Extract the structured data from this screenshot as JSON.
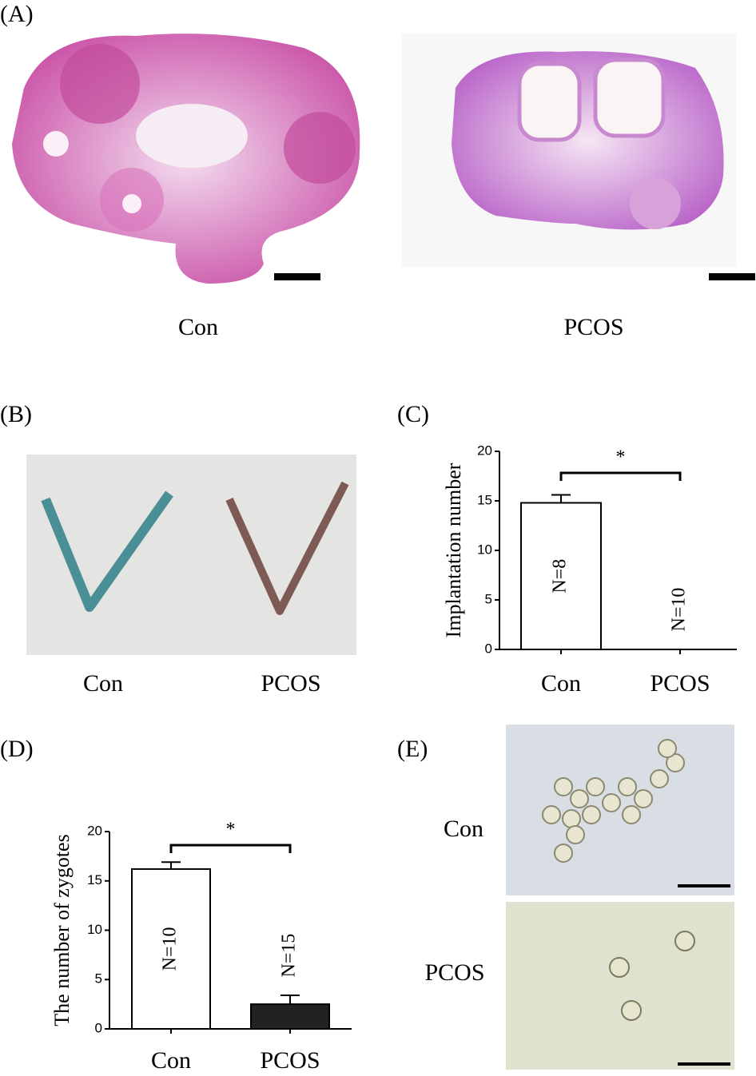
{
  "panel_labels": [
    "(A)",
    "(B)",
    "(C)",
    "(D)",
    "(E)"
  ],
  "panel_a": {
    "labels": [
      "Con",
      "PCOS"
    ]
  },
  "panel_b": {
    "labels": [
      "Con",
      "PCOS"
    ]
  },
  "panel_e": {
    "labels": [
      "Con",
      "PCOS"
    ]
  },
  "chart_data": [
    {
      "type": "bar",
      "y_label": "Implantation number",
      "categories": [
        "Con",
        "PCOS"
      ],
      "values": [
        14.8,
        0
      ],
      "errors": [
        0.8,
        0
      ],
      "colors": [
        "#ffffff",
        "#222222"
      ],
      "bar_labels": [
        "N=8",
        "N=10"
      ],
      "significance": "*",
      "ylim": [
        0,
        20
      ],
      "yticks": [
        0,
        5,
        10,
        15,
        20
      ]
    },
    {
      "type": "bar",
      "y_label": "The number of zygotes",
      "categories": [
        "Con",
        "PCOS"
      ],
      "values": [
        16.2,
        2.5
      ],
      "errors": [
        0.7,
        0.9
      ],
      "colors": [
        "#ffffff",
        "#222222"
      ],
      "bar_labels": [
        "N=10",
        "N=15"
      ],
      "significance": "*",
      "ylim": [
        0,
        20
      ],
      "yticks": [
        0,
        5,
        10,
        15,
        20
      ]
    }
  ]
}
